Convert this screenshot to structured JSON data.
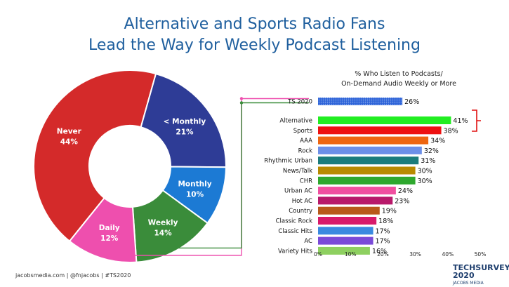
{
  "title": {
    "line1": "Alternative and Sports Radio Fans",
    "line2": "Lead the Way for Weekly Podcast Listening"
  },
  "footer": "jacobsmedia.com  |  @fnjacobs  |  #TS2020",
  "logo": {
    "name": "TECHSURVEY 2020",
    "sub": "JACOBS MEDIA"
  },
  "colors": {
    "title": "#1f5f9e",
    "never": "#d42a2a",
    "monthly_less": "#2e3c96",
    "monthly": "#1c7ad4",
    "weekly": "#3a8c3a",
    "daily": "#ee4fae",
    "bracket": "#e01010"
  },
  "chart_data": [
    {
      "type": "pie",
      "subtype": "donut",
      "slices": [
        {
          "label": "Never",
          "value": 44,
          "value_label": "44%",
          "color": "#d42a2a"
        },
        {
          "label": "< Monthly",
          "value": 21,
          "value_label": "21%",
          "color": "#2e3c96"
        },
        {
          "label": "Monthly",
          "value": 10,
          "value_label": "10%",
          "color": "#1c7ad4"
        },
        {
          "label": "Weekly",
          "value": 14,
          "value_label": "14%",
          "color": "#3a8c3a"
        },
        {
          "label": "Daily",
          "value": 12,
          "value_label": "12%",
          "color": "#ee4fae"
        }
      ]
    },
    {
      "type": "bar",
      "orientation": "horizontal",
      "title": "% Who Listen to Podcasts/ On-Demand Audio Weekly or More",
      "title_lines": [
        "% Who Listen to Podcasts/",
        "On-Demand Audio Weekly or More"
      ],
      "xlim": [
        0,
        50
      ],
      "xticks": [
        "0%",
        "10%",
        "20%",
        "30%",
        "40%",
        "50%"
      ],
      "grid": false,
      "bars": [
        {
          "category": "TS 2020",
          "value": 26,
          "label": "26%",
          "color": "#2d63d8",
          "pattern": "dotted"
        },
        {
          "category": "Alternative",
          "value": 41,
          "label": "41%",
          "color": "#22ee22"
        },
        {
          "category": "Sports",
          "value": 38,
          "label": "38%",
          "color": "#ee1111"
        },
        {
          "category": "AAA",
          "value": 34,
          "label": "34%",
          "color": "#ee6611"
        },
        {
          "category": "Rock",
          "value": 32,
          "label": "32%",
          "color": "#6c8fe8"
        },
        {
          "category": "Rhythmic Urban",
          "value": 31,
          "label": "31%",
          "color": "#1b7c7c"
        },
        {
          "category": "News/Talk",
          "value": 30,
          "label": "30%",
          "color": "#b88a00"
        },
        {
          "category": "CHR",
          "value": 30,
          "label": "30%",
          "color": "#2ea82e"
        },
        {
          "category": "Urban AC",
          "value": 24,
          "label": "24%",
          "color": "#f04fa0"
        },
        {
          "category": "Hot AC",
          "value": 23,
          "label": "23%",
          "color": "#b8196a"
        },
        {
          "category": "Country",
          "value": 19,
          "label": "19%",
          "color": "#b85a1a"
        },
        {
          "category": "Classic Rock",
          "value": 18,
          "label": "18%",
          "color": "#d81a6a"
        },
        {
          "category": "Classic Hits",
          "value": 17,
          "label": "17%",
          "color": "#3a8ae0"
        },
        {
          "category": "AC",
          "value": 17,
          "label": "17%",
          "color": "#7a4ad8"
        },
        {
          "category": "Variety Hits",
          "value": 16,
          "label": "16%",
          "color": "#8ed060"
        }
      ]
    }
  ]
}
